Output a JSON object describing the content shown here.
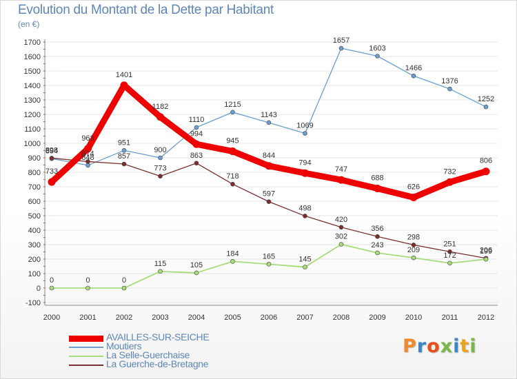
{
  "chart_data": {
    "type": "line",
    "title": "Evolution du Montant de la Dette par Habitant",
    "subtitle": "(en €)",
    "xlabel": "",
    "ylabel": "",
    "ylim": [
      -100,
      1700
    ],
    "yticks": [
      -100,
      0,
      100,
      200,
      300,
      400,
      500,
      600,
      700,
      800,
      900,
      1000,
      1100,
      1200,
      1300,
      1400,
      1500,
      1600,
      1700
    ],
    "categories": [
      "2000",
      "2001",
      "2002",
      "2003",
      "2004",
      "2005",
      "2006",
      "2007",
      "2008",
      "2009",
      "2010",
      "2011",
      "2012"
    ],
    "grid": true,
    "legend_position": "bottom-left",
    "series": [
      {
        "name": "AVAILLES-SUR-SEICHE",
        "color": "#ee0000",
        "values": [
          733,
          963,
          1401,
          1182,
          994,
          945,
          844,
          794,
          747,
          688,
          626,
          732,
          806
        ]
      },
      {
        "name": "Moutiers",
        "color": "#6a9fd0",
        "values": [
          894,
          848,
          951,
          900,
          1110,
          1215,
          1143,
          1069,
          1657,
          1603,
          1466,
          1376,
          1252
        ]
      },
      {
        "name": "La Selle-Guerchaise",
        "color": "#a8db7a",
        "values": [
          0,
          0,
          0,
          115,
          105,
          184,
          165,
          145,
          302,
          243,
          209,
          172,
          199
        ]
      },
      {
        "name": "La Guerche-de-Bretagne",
        "color": "#7a2e2e",
        "values": [
          898,
          874,
          857,
          773,
          863,
          718,
          597,
          498,
          420,
          356,
          298,
          251,
          206
        ]
      }
    ]
  },
  "logo": {
    "text": "Proxiti",
    "letters": [
      "P",
      "r",
      "o",
      "x",
      "i",
      "t",
      "i"
    ],
    "colors": [
      "#f08a2b",
      "#3d86c8",
      "#e94e1b",
      "#7ab648",
      "#3d86c8",
      "#e9a21b",
      "#7ab648"
    ]
  }
}
